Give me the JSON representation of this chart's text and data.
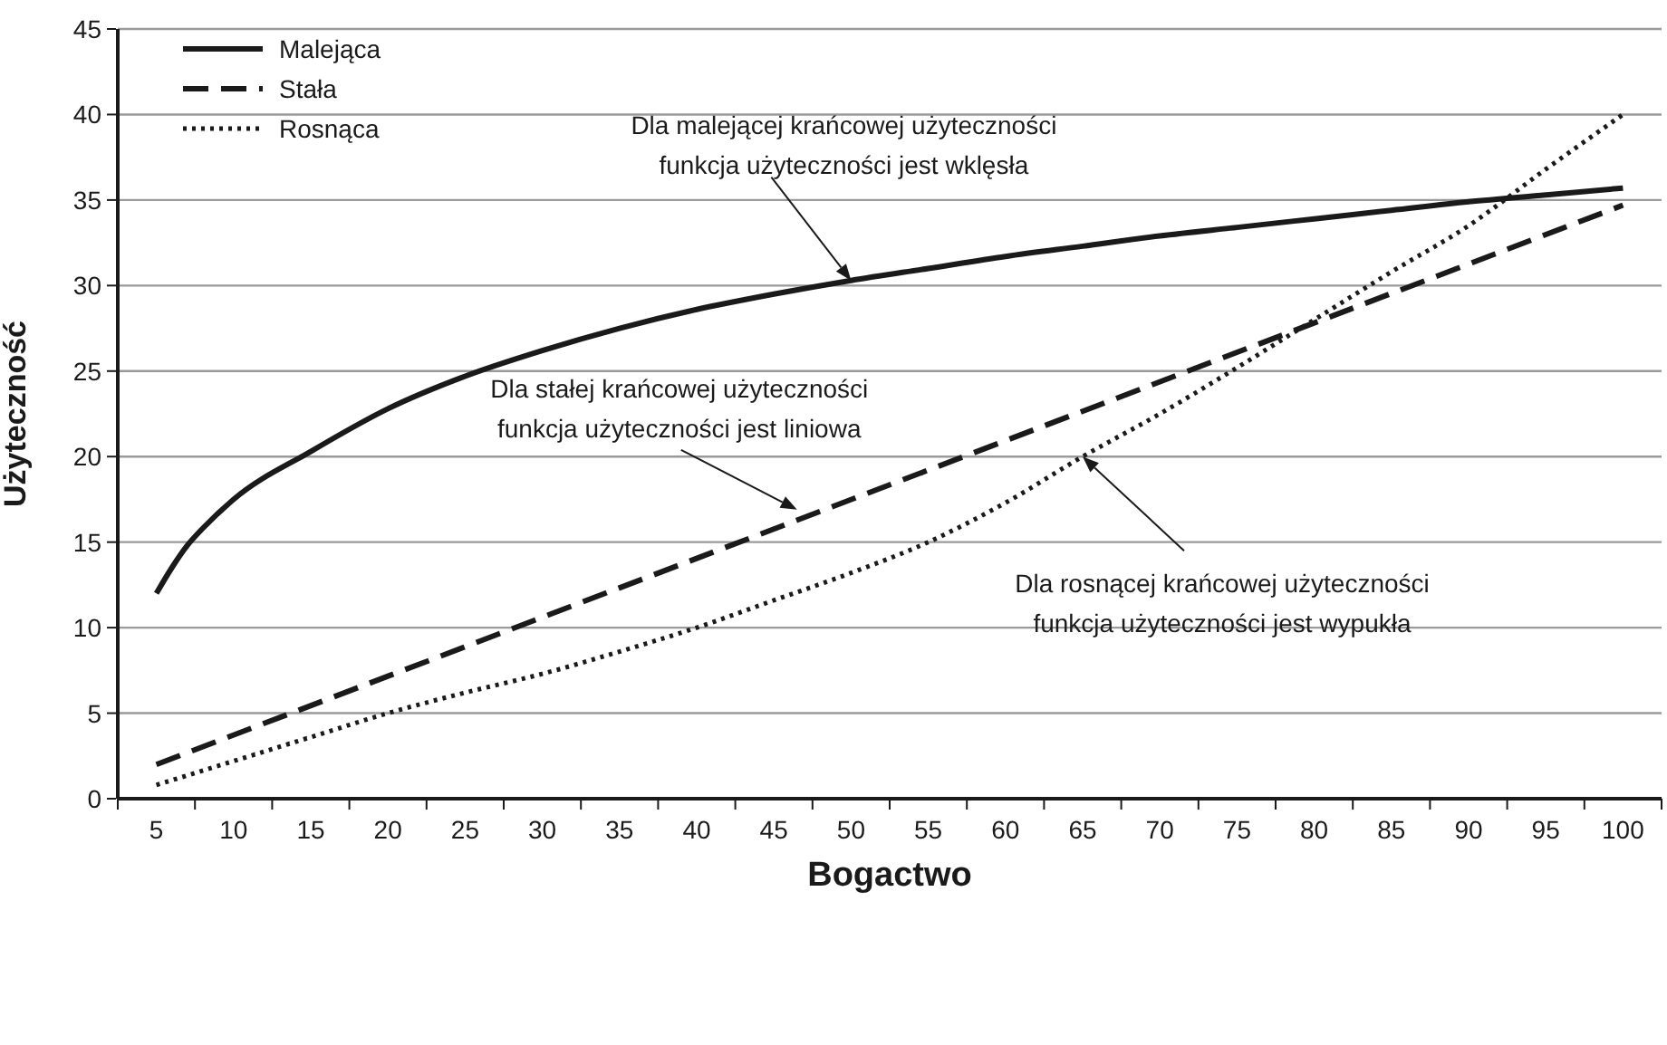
{
  "chart_data": {
    "type": "line",
    "xlabel": "Bogactwo",
    "ylabel": "Użyteczność",
    "xlim": [
      2.5,
      102.5
    ],
    "xticks": [
      {
        "value": 2.5,
        "label": null
      },
      5,
      {
        "value": 7.5,
        "label": null
      },
      10,
      {
        "value": 12.5,
        "label": null
      },
      15,
      {
        "value": 17.5,
        "label": null
      },
      20,
      {
        "value": 22.5,
        "label": null
      },
      25,
      {
        "value": 27.5,
        "label": null
      },
      30,
      {
        "value": 32.5,
        "label": null
      },
      35,
      {
        "value": 37.5,
        "label": null
      },
      40,
      {
        "value": 42.5,
        "label": null
      },
      45,
      {
        "value": 47.5,
        "label": null
      },
      50,
      {
        "value": 52.5,
        "label": null
      },
      55,
      {
        "value": 57.5,
        "label": null
      },
      60,
      {
        "value": 62.5,
        "label": null
      },
      65,
      {
        "value": 67.5,
        "label": null
      },
      70,
      {
        "value": 72.5,
        "label": null
      },
      75,
      {
        "value": 77.5,
        "label": null
      },
      80,
      {
        "value": 82.5,
        "label": null
      },
      85,
      {
        "value": 87.5,
        "label": null
      },
      90,
      {
        "value": 92.5,
        "label": null
      },
      95,
      {
        "value": 97.5,
        "label": null
      },
      100,
      {
        "value": 102.5,
        "label": null
      }
    ],
    "ylim": [
      0,
      45
    ],
    "yticks": [
      0,
      5,
      10,
      15,
      20,
      25,
      30,
      35,
      40,
      45
    ],
    "grid": "y",
    "legend": "top left",
    "marker": "none",
    "series": [
      {
        "name": "Malejąca",
        "color": "#1a1a1a",
        "line_style": "solid",
        "x": [
          5,
          6,
          7,
          8,
          10,
          15,
          20,
          25,
          30,
          35,
          40,
          45,
          50,
          55,
          60,
          65,
          70,
          75,
          80,
          85,
          90,
          95,
          100
        ],
        "values": [
          12,
          13.5,
          14.8,
          15.8,
          17.5,
          20.3,
          22.8,
          24.7,
          26.2,
          27.5,
          28.6,
          29.5,
          30.3,
          31,
          31.7,
          32.3,
          32.9,
          33.4,
          33.9,
          34.4,
          34.9,
          35.3,
          35.7
        ]
      },
      {
        "name": "Stała",
        "color": "#1a1a1a",
        "line_style": "dashed",
        "x": [
          5,
          100
        ],
        "values": [
          2,
          34.7
        ]
      },
      {
        "name": "Rosnąca",
        "color": "#1a1a1a",
        "line_style": "dotted",
        "x": [
          5,
          10,
          15,
          20,
          25,
          30,
          35,
          40,
          45,
          50,
          55,
          60,
          65,
          70,
          75,
          80,
          85,
          90,
          95,
          100
        ],
        "values": [
          0.8,
          2.2,
          3.6,
          5,
          6.2,
          7.3,
          8.6,
          10,
          11.6,
          13.2,
          15,
          17.3,
          20,
          22.5,
          25.2,
          28,
          30.8,
          33.5,
          36.8,
          40
        ]
      }
    ],
    "annotations": [
      {
        "text": "Dla malejącej krańcowej użyteczności\nfunkcja użyteczności jest wklęsła",
        "x": 50,
        "y": 30.3
      },
      {
        "text": "Dla stałej krańcowej użyteczności\nfunkcja użyteczności jest liniowa",
        "x": 46.5,
        "y": 16.9
      },
      {
        "text": "Dla rosnącej krańcowej użyteczności\nfunkcja użyteczności jest wypukła",
        "x": 65,
        "y": 20
      }
    ]
  }
}
